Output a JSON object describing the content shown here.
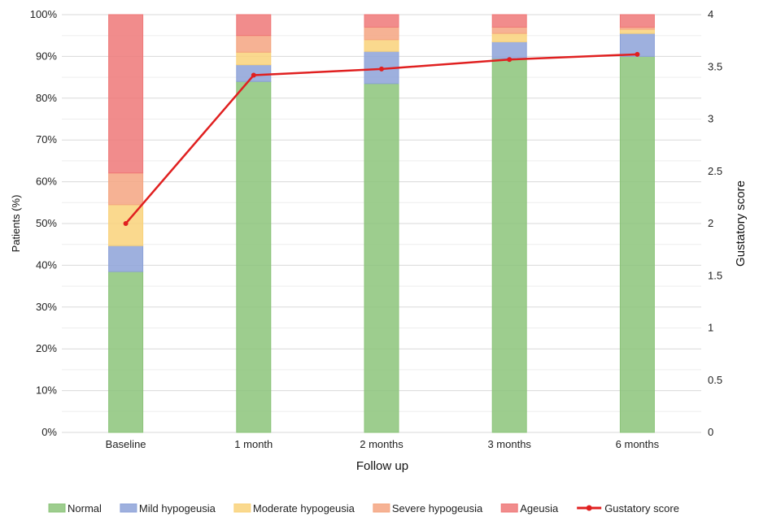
{
  "chart_data": {
    "type": "bar",
    "stacked": true,
    "categories": [
      "Baseline",
      "1 month",
      "2 months",
      "3 months",
      "6 months"
    ],
    "xlabel": "Follow up",
    "ylabel": "Patients (%)",
    "y2label": "Gustatory score",
    "ylim": [
      0,
      100
    ],
    "y2lim": [
      0,
      4
    ],
    "yticks": [
      "0%",
      "10%",
      "20%",
      "30%",
      "40%",
      "50%",
      "60%",
      "70%",
      "80%",
      "90%",
      "100%"
    ],
    "y2ticks": [
      "0",
      "0.5",
      "1",
      "1.5",
      "2",
      "2.5",
      "3",
      "3.5",
      "4"
    ],
    "grid": true,
    "legend_position": "bottom",
    "series": [
      {
        "name": "Normal",
        "color": "#8cc47a",
        "values": [
          38.5,
          84,
          83.5,
          89.5,
          90
        ]
      },
      {
        "name": "Mild hypogeusia",
        "color": "#8da2d8",
        "values": [
          6.2,
          4,
          7.7,
          4,
          5.5
        ]
      },
      {
        "name": "Moderate hypogeusia",
        "color": "#f9d27a",
        "values": [
          9.8,
          3,
          2.8,
          2,
          1
        ]
      },
      {
        "name": "Severe hypogeusia",
        "color": "#f4a581",
        "values": [
          7.6,
          4,
          3,
          1.5,
          0.5
        ]
      },
      {
        "name": "Ageusia",
        "color": "#ef7878",
        "values": [
          37.9,
          5,
          3,
          3,
          3
        ]
      }
    ],
    "line_series": {
      "name": "Gustatory score",
      "color": "#e02020",
      "axis": "right",
      "values": [
        2.0,
        3.42,
        3.48,
        3.57,
        3.62
      ]
    }
  }
}
